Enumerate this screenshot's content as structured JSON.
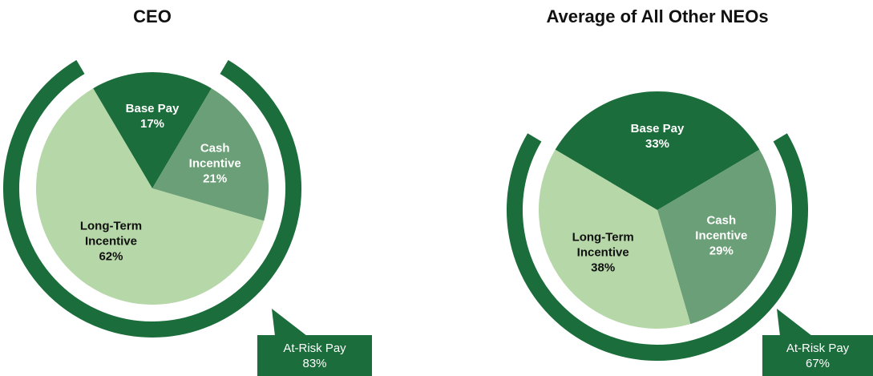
{
  "chart_data": [
    {
      "type": "pie",
      "title": "CEO",
      "categories": [
        "Base Pay",
        "Cash Incentive",
        "Long-Term Incentive"
      ],
      "values": [
        17,
        21,
        62
      ],
      "value_labels": [
        "17%",
        "21%",
        "62%"
      ],
      "colors": [
        "#1b6d3b",
        "#6b9f77",
        "#b6d7a8"
      ],
      "annotation": {
        "label": "At-Risk Pay",
        "value": 83,
        "value_label": "83%",
        "color": "#1b6d3b"
      }
    },
    {
      "type": "pie",
      "title": "Average of All Other NEOs",
      "categories": [
        "Base Pay",
        "Cash Incentive",
        "Long-Term Incentive"
      ],
      "values": [
        33,
        29,
        38
      ],
      "value_labels": [
        "33%",
        "29%",
        "38%"
      ],
      "colors": [
        "#1b6d3b",
        "#6b9f77",
        "#b6d7a8"
      ],
      "annotation": {
        "label": "At-Risk Pay",
        "value": 67,
        "value_label": "67%",
        "color": "#1b6d3b"
      }
    }
  ]
}
